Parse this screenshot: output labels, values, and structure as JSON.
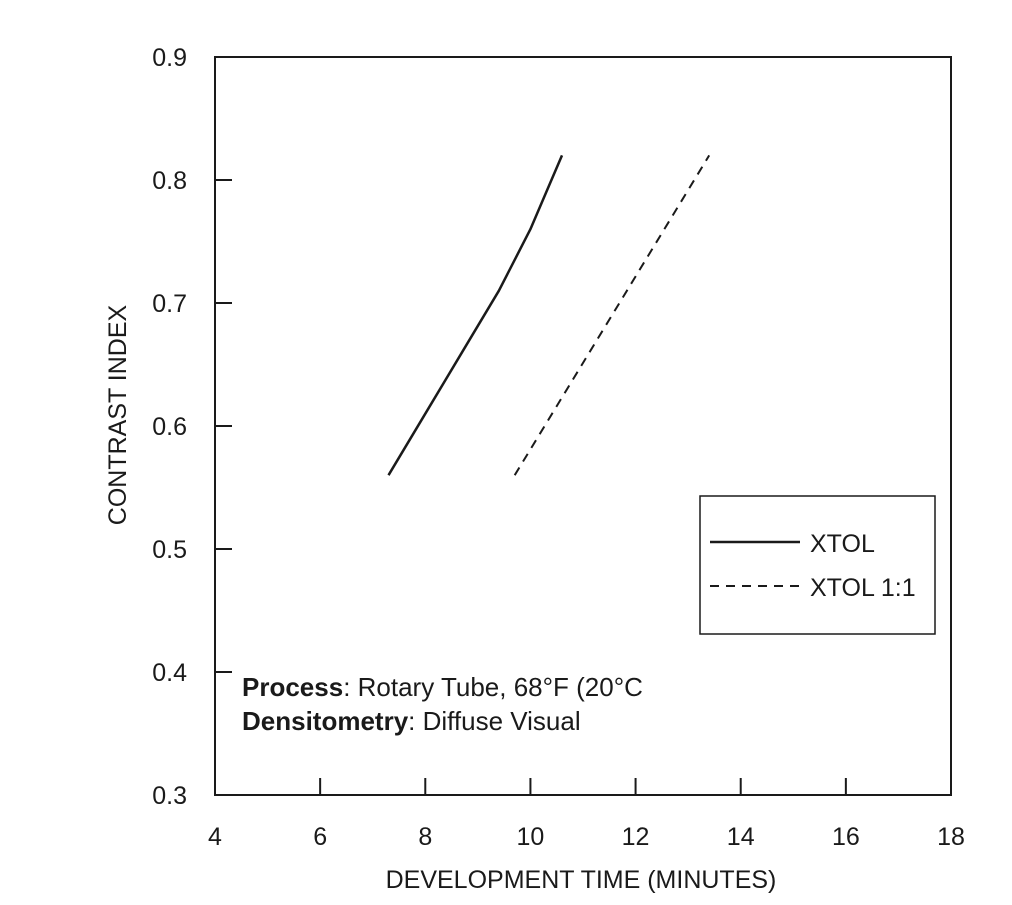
{
  "chart_data": {
    "type": "line",
    "title": "",
    "xlabel": "DEVELOPMENT TIME (MINUTES)",
    "ylabel": "CONTRAST INDEX",
    "xlim": [
      4,
      18
    ],
    "ylim": [
      0.3,
      0.9
    ],
    "xticks": [
      4,
      6,
      8,
      10,
      12,
      14,
      16,
      18
    ],
    "yticks": [
      0.3,
      0.4,
      0.5,
      0.6,
      0.7,
      0.8,
      0.9
    ],
    "xtick_labels": [
      "4",
      "6",
      "8",
      "10",
      "12",
      "14",
      "16",
      "18"
    ],
    "ytick_labels": [
      "0.3",
      "0.4",
      "0.5",
      "0.6",
      "0.7",
      "0.8",
      "0.9"
    ],
    "grid": false,
    "legend_position": "right",
    "series": [
      {
        "name": "XTOL",
        "style": "solid",
        "color": "#1a1a1a",
        "x": [
          7.3,
          8.0,
          8.7,
          9.4,
          10.0,
          10.3,
          10.6
        ],
        "y": [
          0.56,
          0.61,
          0.66,
          0.71,
          0.76,
          0.79,
          0.82
        ]
      },
      {
        "name": "XTOL 1:1",
        "style": "dashed",
        "color": "#1a1a1a",
        "x": [
          9.7,
          13.4
        ],
        "y": [
          0.56,
          0.82
        ]
      }
    ],
    "annotations": [
      {
        "label": "Process",
        "text": ": Rotary Tube, 68°F (20°C"
      },
      {
        "label": "Densitometry",
        "text": ": Diffuse Visual"
      }
    ]
  }
}
